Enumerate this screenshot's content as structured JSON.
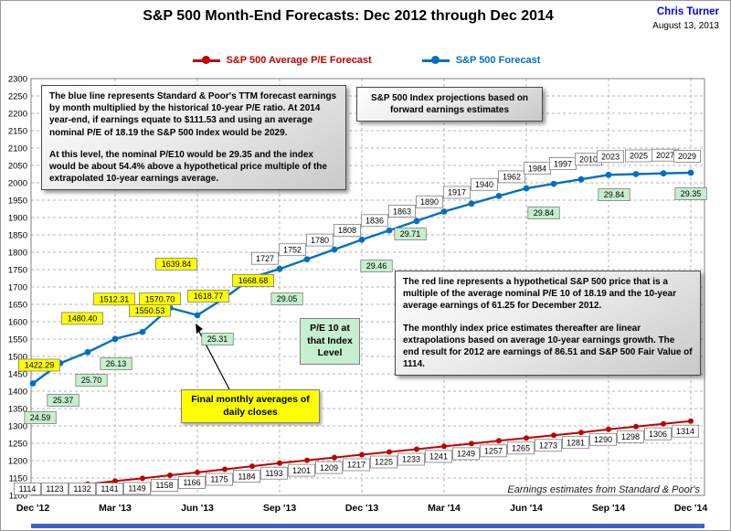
{
  "header": {
    "title": "S&P 500 Month-End Forecasts: Dec 2012 through Dec 2014",
    "author": "Chris Turner",
    "date": "August 13, 2013"
  },
  "legend": [
    {
      "label": "S&P 500 Average P/E Forecast",
      "color": "#C00000"
    },
    {
      "label": "S&P 500 Forecast",
      "color": "#0070C0"
    }
  ],
  "annotations": {
    "blue_note": "The blue line represents Standard & Poor's TTM forecast earnings by month multiplied by the historical 10-year P/E ratio.  At 2014 year-end, if earnings equate to  $111.53  and using an average nominal P/E of 18.19 the S&P 500 Index would be 2029.",
    "blue_note2": "At this level, the nominal P/E10 would be 29.35 and the index would be about 54.4% above a hypothetical price multiple of the extrapolated 10-year earnings average.",
    "projection_note": "S&P 500 Index projections based on forward earnings estimates",
    "red_note": "The red line represents a hypothetical S&P 500 price that is a multiple of the average nominal P/E 10 of 18.19 and the 10-year average earnings of 61.25 for December 2012.",
    "red_note2": "The monthly index price estimates thereafter are linear extrapolations based on average 10-year earnings growth.  The end result for 2012 are earnings of 86.51 and S&P 500 Fair Value of 1114.",
    "yellow_note": "Final monthly averages of daily closes",
    "pe_box": "P/E 10 at that Index Level",
    "source": "Earnings estimates from Standard & Poor's"
  },
  "chart_data": {
    "type": "line",
    "title": "S&P 500 Month-End Forecasts: Dec 2012 through Dec 2014",
    "x_frequency": "monthly",
    "x_tick_labels": [
      "Dec '12",
      "Mar '13",
      "Jun '13",
      "Sep '13",
      "Dec '13",
      "Mar '14",
      "Jun '14",
      "Sep '14",
      "Dec '14"
    ],
    "ylim": [
      1100,
      2300
    ],
    "y_step": 50,
    "grid": true,
    "legend_position": "top",
    "series": [
      {
        "name": "S&P 500 Average P/E Forecast",
        "color": "#C00000",
        "values": [
          1114,
          1123,
          1132,
          1141,
          1149,
          1158,
          1166,
          1175,
          1184,
          1193,
          1201,
          1209,
          1217,
          1225,
          1233,
          1241,
          1249,
          1257,
          1265,
          1273,
          1281,
          1290,
          1298,
          1306,
          1314
        ]
      },
      {
        "name": "S&P 500 Forecast",
        "color": "#0070C0",
        "values": [
          1422.29,
          1480.4,
          1512.31,
          1550.53,
          1570.7,
          1639.84,
          1618.77,
          1668.68,
          1727,
          1752,
          1780,
          1808,
          1836,
          1863,
          1890,
          1917,
          1940,
          1962,
          1984,
          1997,
          2010,
          2023,
          2025,
          2027,
          2029
        ],
        "labels": [
          "1422.29",
          "1480.40",
          "1512.31",
          "1550.53",
          "1570.70",
          "1639.84",
          "1618.77",
          "1668.68",
          "1727",
          "1752",
          "1780",
          "1808",
          "1836",
          "1863",
          "1890",
          "1917",
          "1940",
          "1962",
          "1984",
          "1997",
          "2010",
          "2023",
          "2025",
          "2027",
          "2029"
        ],
        "actual_count": 8
      }
    ],
    "pe_labels": [
      {
        "value": "24.59"
      },
      {
        "value": "25.37"
      },
      {
        "value": "25.70"
      },
      {
        "value": "26.13"
      },
      {
        "value": "25.31"
      },
      {
        "value": "29.05"
      },
      {
        "value": "29.46"
      },
      {
        "value": "29.71"
      },
      {
        "value": "29.84"
      },
      {
        "value": "29.84"
      },
      {
        "value": "29.35"
      }
    ],
    "label_colors": {
      "forecast_bg": "#FFFFFF",
      "actual_bg": "#FFFF00",
      "pe_bg": "#C6EFCE"
    }
  }
}
